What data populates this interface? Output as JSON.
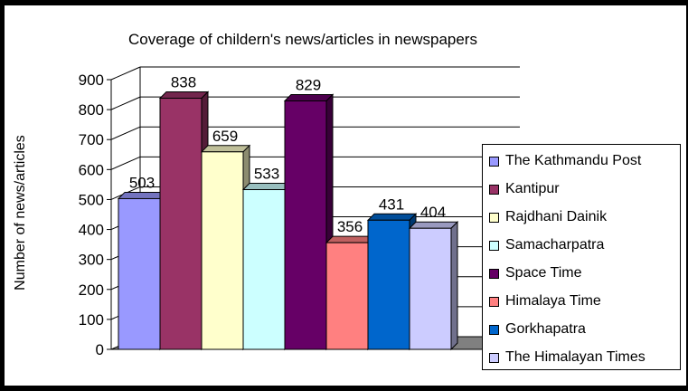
{
  "chart_data": {
    "type": "bar",
    "style": "3d-column",
    "title": "Coverage of childern's news/articles in newspapers",
    "ylabel": "Number of news/articles",
    "xlabel": "",
    "ylim": [
      0,
      900
    ],
    "yticks": [
      0,
      100,
      200,
      300,
      400,
      500,
      600,
      700,
      800,
      900
    ],
    "grid": true,
    "legend_position": "right",
    "series": [
      {
        "name": "The Kathmandu Post",
        "value": 503,
        "color": "#9999ff"
      },
      {
        "name": "Kantipur",
        "value": 838,
        "color": "#993366"
      },
      {
        "name": "Rajdhani Dainik",
        "value": 659,
        "color": "#ffffcc"
      },
      {
        "name": "Samacharpatra",
        "value": 533,
        "color": "#ccffff"
      },
      {
        "name": "Space Time",
        "value": 829,
        "color": "#660066"
      },
      {
        "name": "Himalaya Time",
        "value": 356,
        "color": "#ff8080"
      },
      {
        "name": "Gorkhapatra",
        "value": 431,
        "color": "#0066cc"
      },
      {
        "name": "The Himalayan Times",
        "value": 404,
        "color": "#ccccff"
      }
    ]
  }
}
